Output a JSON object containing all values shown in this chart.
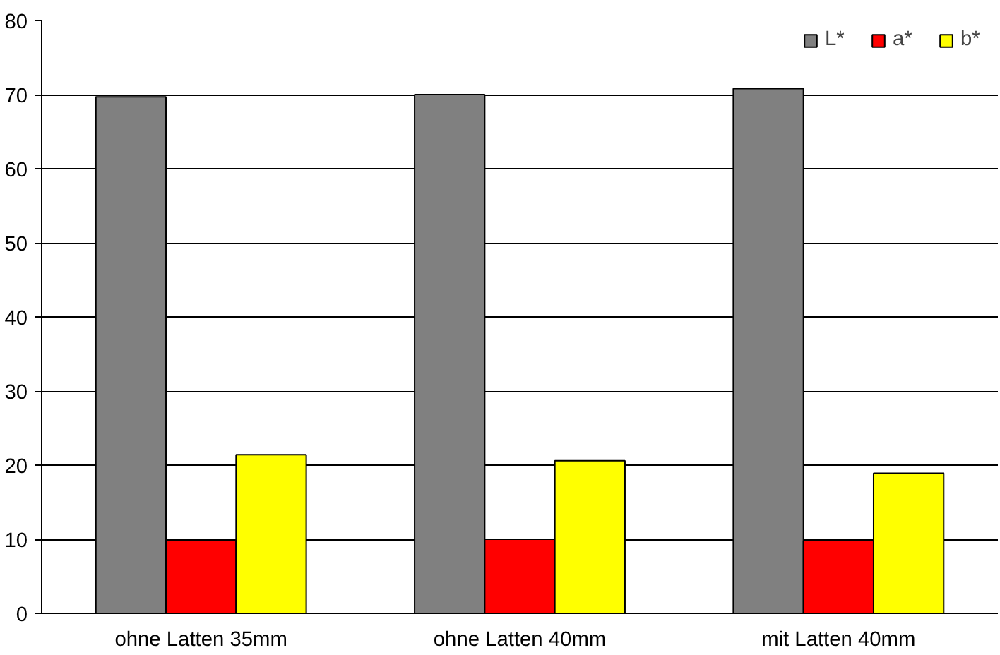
{
  "chart_data": {
    "type": "bar",
    "categories": [
      "ohne Latten 35mm",
      "ohne Latten 40mm",
      "mit Latten 40mm"
    ],
    "series": [
      {
        "name": "L*",
        "color": "#808080",
        "values": [
          69.7,
          70.0,
          70.8
        ]
      },
      {
        "name": "a*",
        "color": "#ff0000",
        "values": [
          9.8,
          10.0,
          9.8
        ]
      },
      {
        "name": "b*",
        "color": "#ffff00",
        "values": [
          21.4,
          20.6,
          18.9
        ]
      }
    ],
    "ylim": [
      0,
      80
    ],
    "yticks": [
      0,
      10,
      20,
      30,
      40,
      50,
      60,
      70,
      80
    ],
    "grid": "y",
    "legend": "top right"
  }
}
